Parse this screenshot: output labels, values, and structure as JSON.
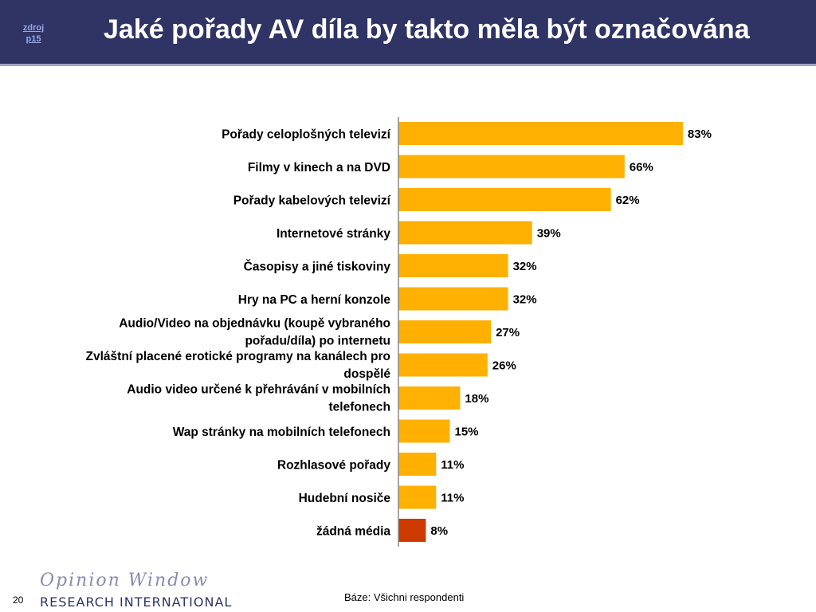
{
  "header": {
    "source_link": "zdroj\np15",
    "title": "Jaké pořady AV díla by takto měla být označována"
  },
  "footer": {
    "base_note": "Báze: Všichni respondenti",
    "page_number": "20",
    "logo_script": "Opinion Window",
    "logo_corp": "RESEARCH INTERNATIONAL"
  },
  "colors": {
    "header_bg": "#2f3464",
    "bar": "#ffb000",
    "bar_highlight": "#cc3a00",
    "axis": "#888888"
  },
  "chart_data": {
    "type": "bar",
    "orientation": "horizontal",
    "categories": [
      "Pořady celoplošných televizí",
      "Filmy v kinech a na DVD",
      "Pořady kabelových televizí",
      "Internetové stránky",
      "Časopisy a jiné tiskoviny",
      "Hry na PC a herní konzole",
      "Audio/Video na objednávku (koupě vybraného pořadu/díla) po internetu",
      "Zvláštní placené erotické programy na kanálech pro dospělé",
      "Audio video určené k přehrávání v mobilních telefonech",
      "Wap stránky na mobilních telefonech",
      "Rozhlasové pořady",
      "Hudební nosiče",
      "žádná média"
    ],
    "category_lines": [
      [
        "Pořady celoplošných televizí"
      ],
      [
        "Filmy v kinech a na DVD"
      ],
      [
        "Pořady kabelových televizí"
      ],
      [
        "Internetové stránky"
      ],
      [
        "Časopisy a jiné tiskoviny"
      ],
      [
        "Hry na PC a herní konzole"
      ],
      [
        "Audio/Video na objednávku (koupě vybraného",
        "pořadu/díla) po internetu"
      ],
      [
        "Zvláštní placené erotické programy na kanálech pro",
        "dospělé"
      ],
      [
        "Audio video určené k přehrávání v mobilních",
        "telefonech"
      ],
      [
        "Wap stránky na mobilních telefonech"
      ],
      [
        "Rozhlasové pořady"
      ],
      [
        "Hudební nosiče"
      ],
      [
        "žádná média"
      ]
    ],
    "values": [
      83,
      66,
      62,
      39,
      32,
      32,
      27,
      26,
      18,
      15,
      11,
      11,
      8
    ],
    "value_labels": [
      "83%",
      "66%",
      "62%",
      "39%",
      "32%",
      "32%",
      "27%",
      "26%",
      "18%",
      "15%",
      "11%",
      "11%",
      "8%"
    ],
    "highlight_index": 12,
    "xlim": [
      0,
      100
    ],
    "title": "",
    "xlabel": "",
    "ylabel": "",
    "grid": false,
    "legend": "none"
  }
}
